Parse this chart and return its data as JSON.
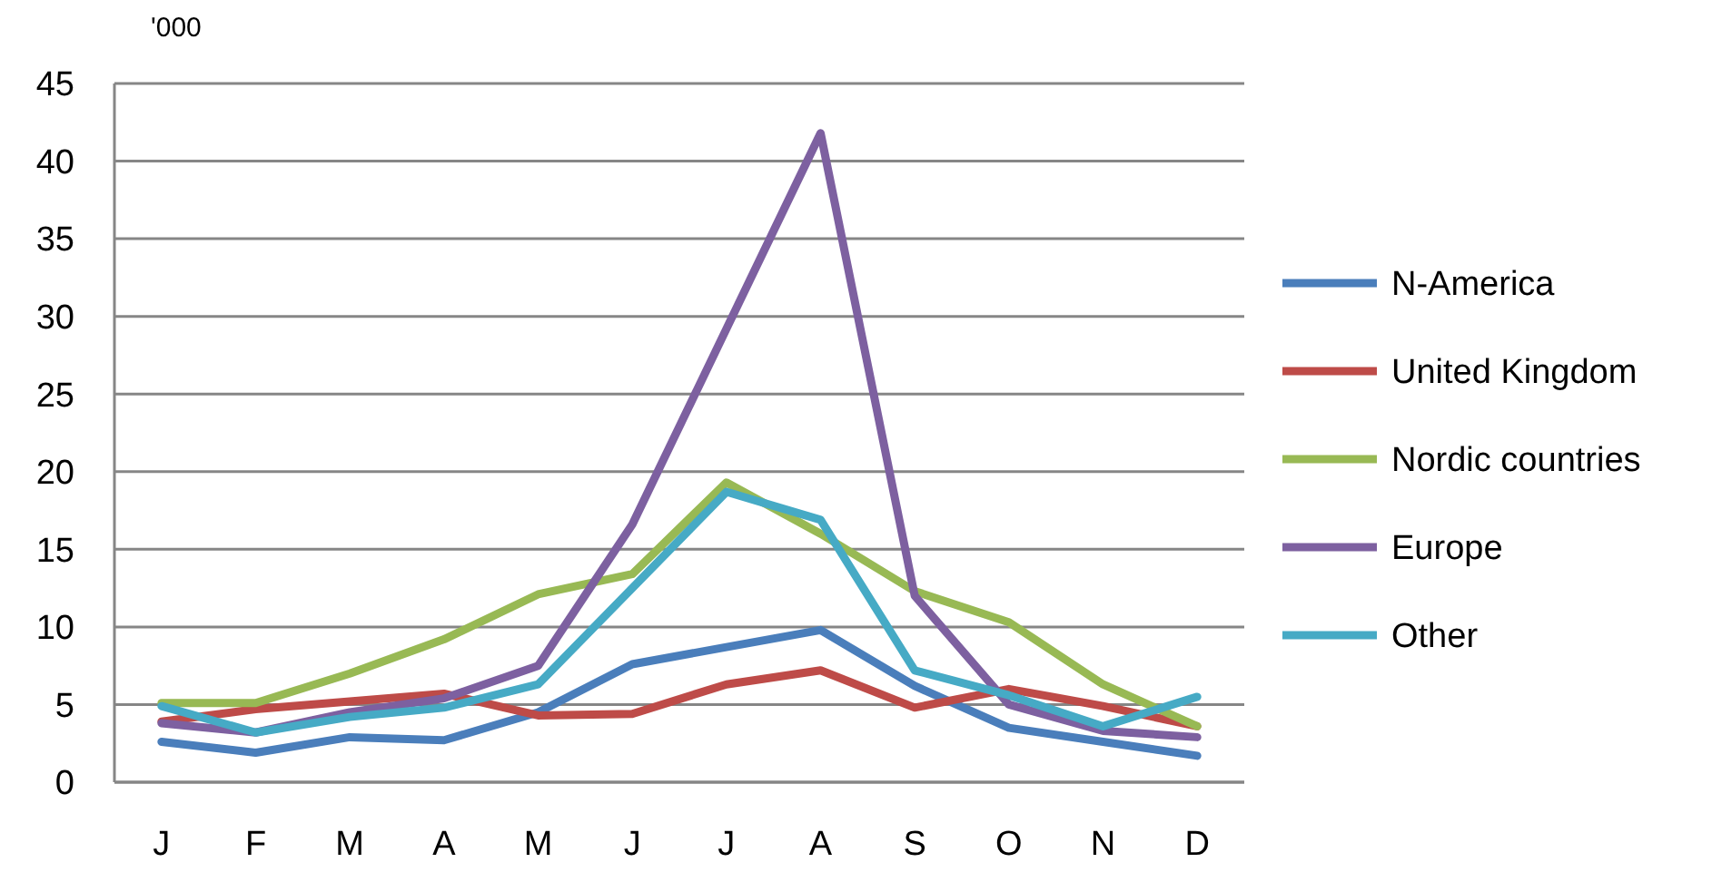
{
  "chart_data": {
    "type": "line",
    "ylabel": "'000",
    "categories": [
      "J",
      "F",
      "M",
      "A",
      "M",
      "J",
      "J",
      "A",
      "S",
      "O",
      "N",
      "D"
    ],
    "series": [
      {
        "name": "N-America",
        "color": "#4a7ebb",
        "values": [
          2.6,
          1.9,
          2.9,
          2.7,
          4.5,
          7.6,
          8.7,
          9.8,
          6.2,
          3.5,
          2.6,
          1.7
        ]
      },
      {
        "name": "United Kingdom",
        "color": "#be4b48",
        "values": [
          3.9,
          4.7,
          5.2,
          5.7,
          4.3,
          4.4,
          6.3,
          7.2,
          4.8,
          6.0,
          4.9,
          3.6
        ]
      },
      {
        "name": "Nordic countries",
        "color": "#98b954",
        "values": [
          5.1,
          5.1,
          7.0,
          9.2,
          12.1,
          13.4,
          19.3,
          16.0,
          12.3,
          10.3,
          6.3,
          3.6
        ]
      },
      {
        "name": "Europe",
        "color": "#7d60a0",
        "values": [
          3.8,
          3.2,
          4.5,
          5.4,
          7.5,
          16.6,
          29.2,
          41.8,
          12.0,
          5.0,
          3.3,
          2.9
        ]
      },
      {
        "name": "Other",
        "color": "#46aac5",
        "values": [
          4.9,
          3.2,
          4.2,
          4.8,
          6.3,
          12.5,
          18.7,
          16.9,
          7.2,
          5.6,
          3.6,
          5.5
        ]
      }
    ],
    "ylim": [
      0,
      45
    ],
    "yticks": [
      0,
      5,
      10,
      15,
      20,
      25,
      30,
      35,
      40,
      45
    ],
    "grid": "y",
    "legend": "right",
    "marker": "none",
    "line_style": "solid"
  }
}
